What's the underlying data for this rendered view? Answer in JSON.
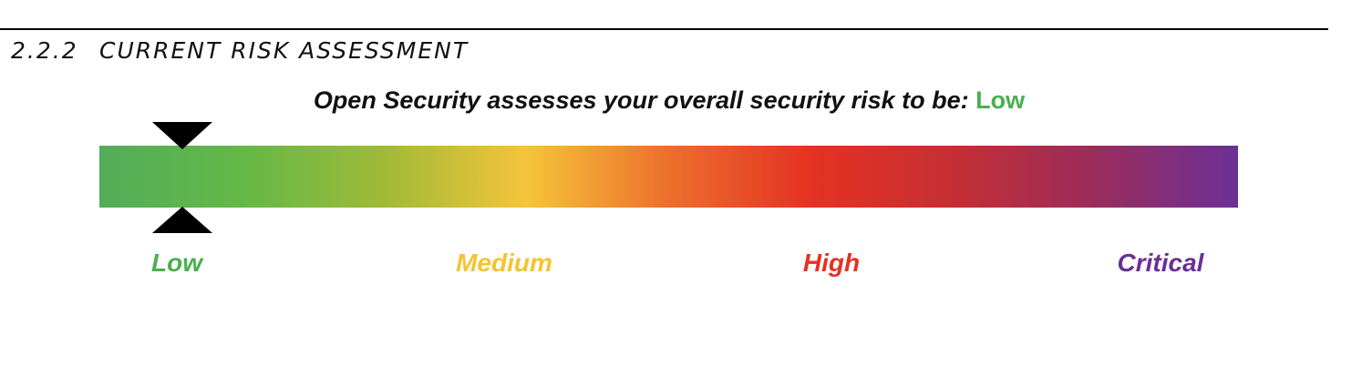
{
  "section": {
    "number": "2.2.2",
    "title": "CURRENT RISK ASSESSMENT"
  },
  "assessment": {
    "statement": "Open Security assesses your overall security risk to be:",
    "level": "Low",
    "level_color": "#4caf50"
  },
  "risk_scale": {
    "levels": [
      {
        "label": "Low",
        "color": "#4caf50"
      },
      {
        "label": "Medium",
        "color": "#f4c430"
      },
      {
        "label": "High",
        "color": "#e53222"
      },
      {
        "label": "Critical",
        "color": "#6b2f96"
      }
    ],
    "gradient_colors": [
      "#52ad58",
      "#64b848",
      "#9fba38",
      "#f5c43a",
      "#ec6f2c",
      "#e53222",
      "#c52f34",
      "#9a2c5c",
      "#6c3098"
    ],
    "current_level_index": 0
  }
}
